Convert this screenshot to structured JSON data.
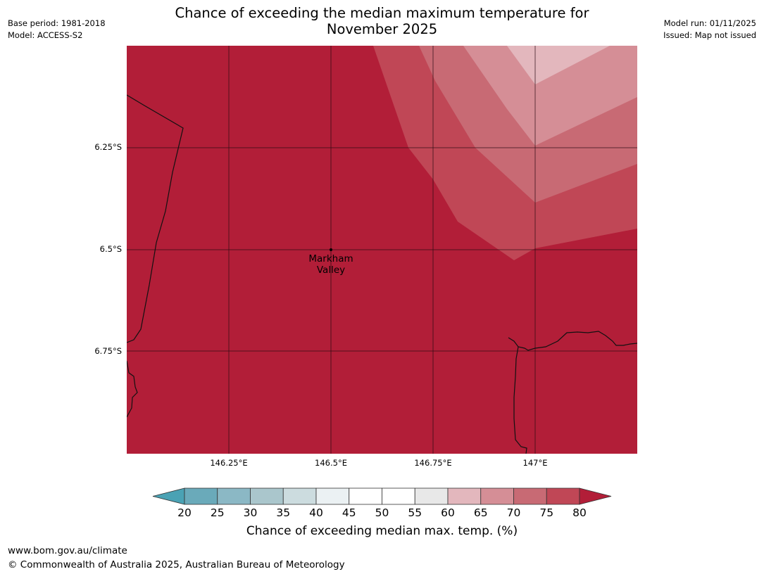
{
  "title": {
    "line1": "Chance of exceeding the median maximum temperature for",
    "line2": "November 2025"
  },
  "meta_left": {
    "base_period": "Base period: 1981-2018",
    "model": "Model: ACCESS-S2"
  },
  "meta_right": {
    "model_run": "Model run: 01/11/2025",
    "issued": "Issued: Map not issued"
  },
  "map": {
    "lat_labels": [
      "6.25°S",
      "6.5°S",
      "6.75°S"
    ],
    "lon_labels": [
      "146.25°E",
      "146.5°E",
      "146.75°E",
      "147°E"
    ],
    "place": {
      "name": "Markham Valley",
      "line1": "Markham",
      "line2": "Valley",
      "lon": 146.5,
      "lat": -6.5
    }
  },
  "colorbar": {
    "ticks": [
      "20",
      "25",
      "30",
      "35",
      "40",
      "45",
      "50",
      "55",
      "60",
      "65",
      "70",
      "75",
      "80"
    ],
    "colors": [
      "#4aa2b4",
      "#6aaaba",
      "#8bb8c5",
      "#aac6cc",
      "#ccdcdf",
      "#ebf1f3",
      "#ffffff",
      "#ffffff",
      "#e8e8e8",
      "#e3b7bd",
      "#d58e96",
      "#c86a74",
      "#c04756",
      "#b21e38"
    ],
    "label": "Chance of exceeding median max. temp. (%)"
  },
  "colors": {
    "band_80_plus": "#b21e38",
    "band_75_80": "#c04756",
    "band_70_75": "#c86a74",
    "band_65_70": "#d58e96",
    "band_60_65": "#e3b7bd"
  },
  "footer": {
    "url": "www.bom.gov.au/climate",
    "copyright": "© Commonwealth of Australia 2025, Australian Bureau of Meteorology"
  }
}
